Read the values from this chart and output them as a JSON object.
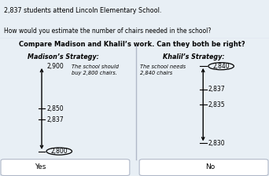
{
  "bg_top": "#d4d4e8",
  "bg_main": "#e8eff5",
  "title_line1": "2,837 students attend Lincoln Elementary School.",
  "title_line2": "How would you estimate the number of chairs needed in the school?",
  "compare_title": "Compare Madison and Khalil’s work. Can they both be right?",
  "madison_label": "Madison’s Strategy:",
  "khalil_label": "Khalil’s Strategy:",
  "madison_note": "The school should\nbuy 2,800 chairs.",
  "khalil_note": "The school needs\n2,840 chairs",
  "yes_label": "Yes",
  "no_label": "No",
  "divider_color": "#b0b8c8"
}
